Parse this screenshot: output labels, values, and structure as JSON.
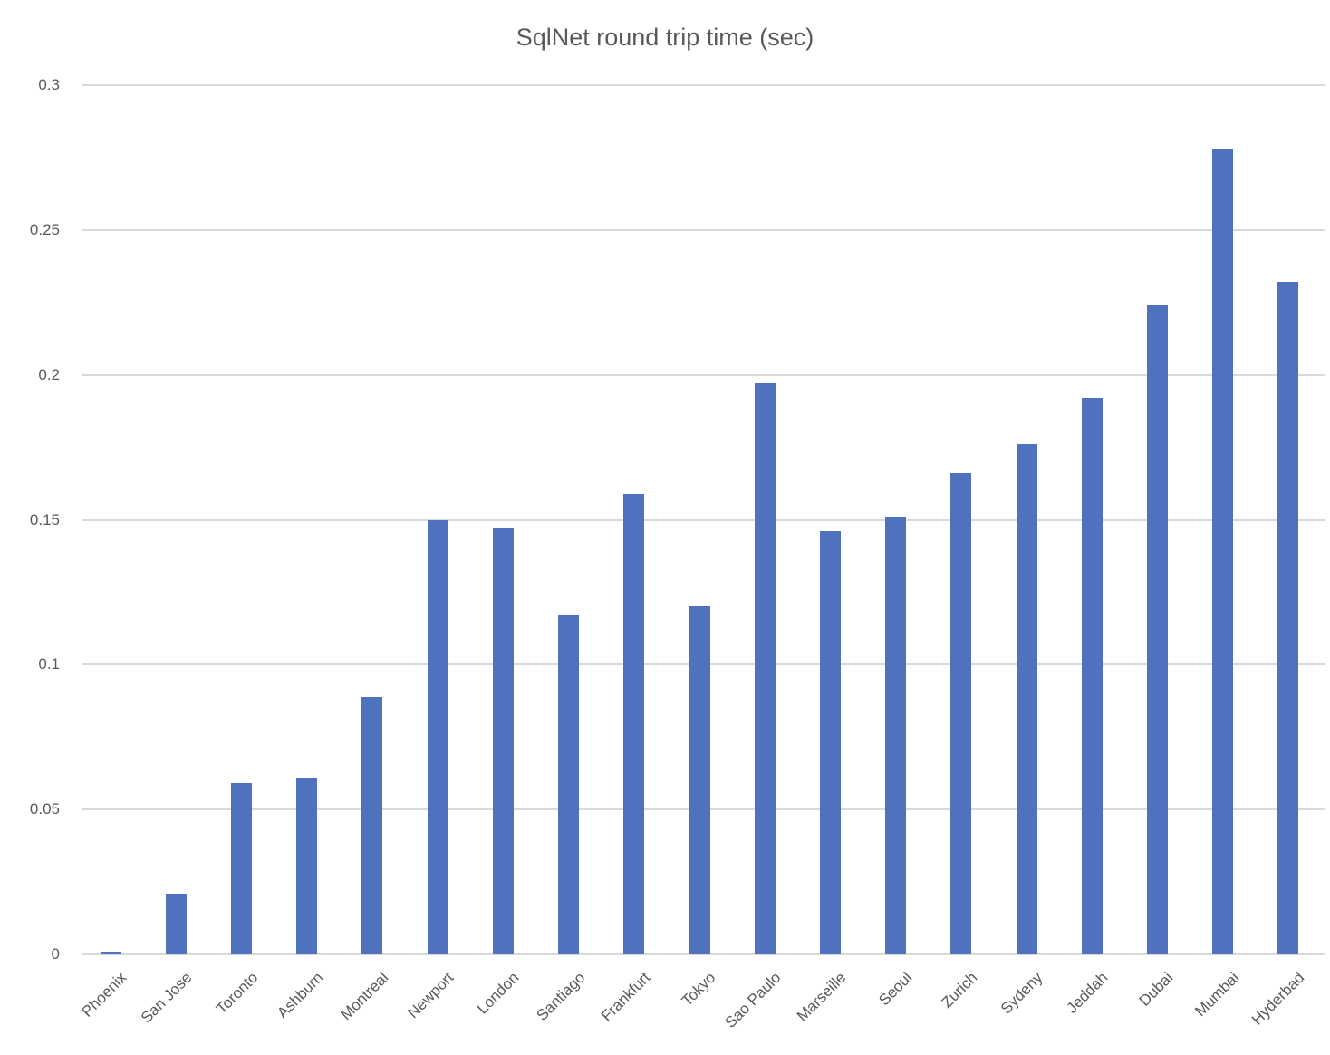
{
  "chart_data": {
    "type": "bar",
    "title": "SqlNet round trip time (sec)",
    "xlabel": "",
    "ylabel": "",
    "ylim": [
      0,
      0.3
    ],
    "yticks": [
      "0",
      "0.05",
      "0.1",
      "0.15",
      "0.2",
      "0.25",
      "0.3"
    ],
    "grid": true,
    "legend": null,
    "bar_color": "#4f72be",
    "categories": [
      "Phoenix",
      "San Jose",
      "Toronto",
      "Ashburn",
      "Montreal",
      "Newport",
      "London",
      "Santiago",
      "Frankfurt",
      "Tokyo",
      "Sao Paulo",
      "Marseille",
      "Seoul",
      "Zurich",
      "Sydeny",
      "Jeddah",
      "Dubai",
      "Mumbai",
      "Hyderbad"
    ],
    "values": [
      0.001,
      0.021,
      0.059,
      0.061,
      0.089,
      0.15,
      0.147,
      0.117,
      0.159,
      0.12,
      0.197,
      0.146,
      0.151,
      0.166,
      0.176,
      0.192,
      0.224,
      0.278,
      0.232
    ]
  }
}
